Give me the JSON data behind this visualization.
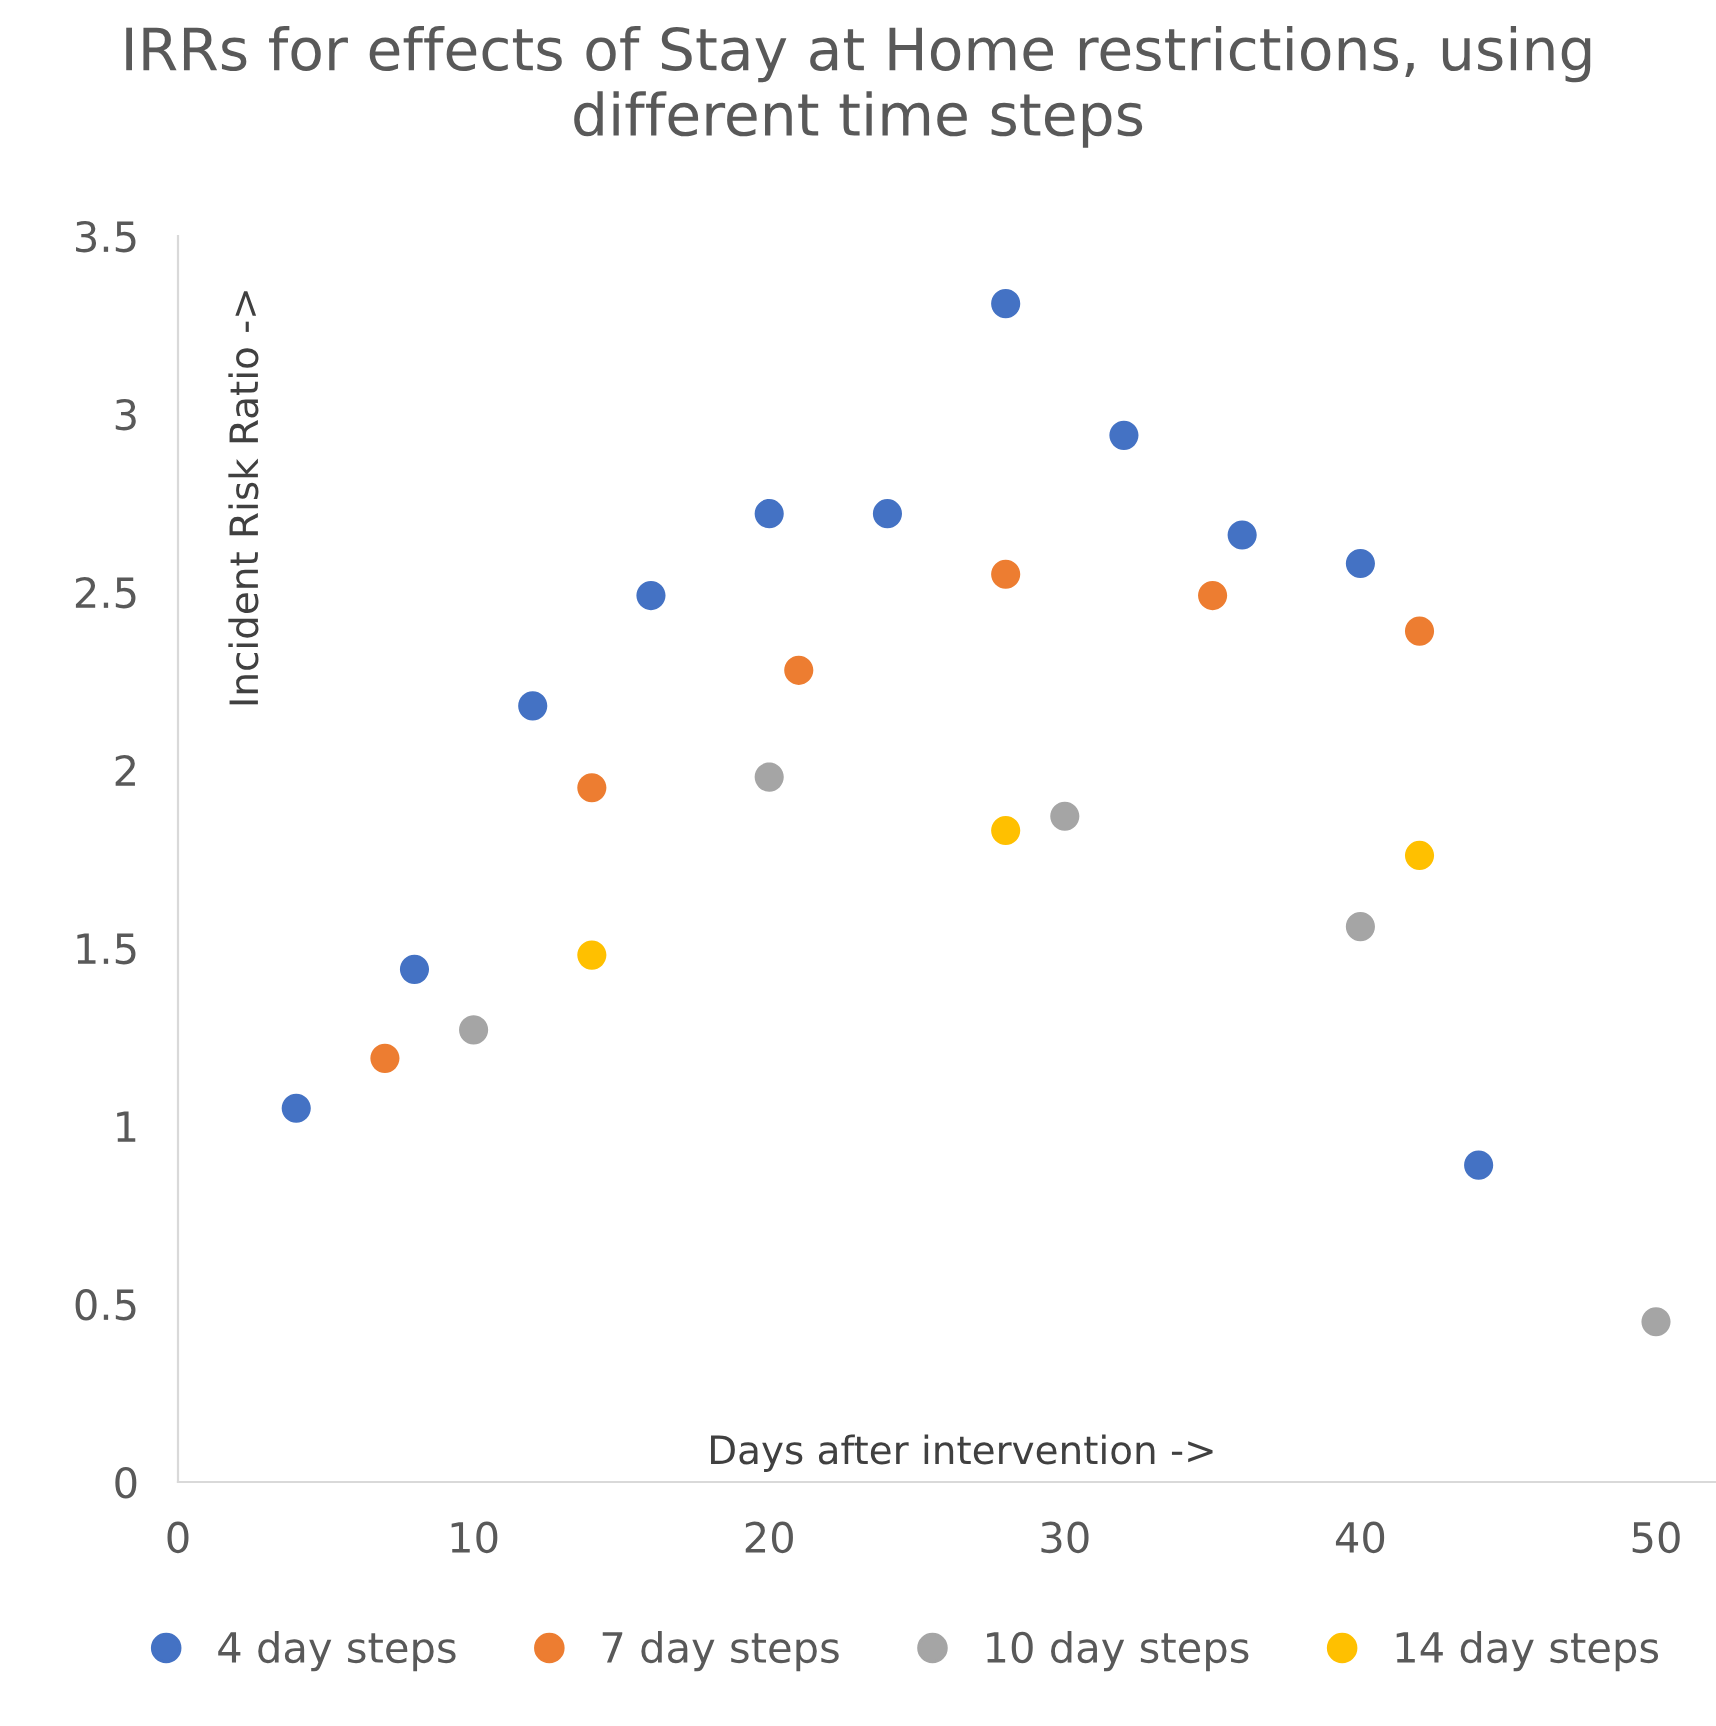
{
  "chart_data": {
    "type": "scatter",
    "title": "IRRs for effects of Stay at Home restrictions, using different time steps",
    "xlabel": "Days after intervention ->",
    "ylabel": "Incident Risk Ratio ->",
    "xlim": [
      0,
      52
    ],
    "xticks": [
      0,
      10,
      20,
      30,
      40,
      50
    ],
    "ylim": [
      0,
      3.5
    ],
    "yticks": [
      0,
      0.5,
      1,
      1.5,
      2,
      2.5,
      3,
      3.5
    ],
    "grid": false,
    "legend": "bottom",
    "marker": "circle",
    "series": [
      {
        "name": "4 day steps",
        "color": "#4472c4",
        "x": [
          4,
          8,
          12,
          16,
          20,
          24,
          28,
          32,
          36,
          40,
          44
        ],
        "values": [
          1.05,
          1.44,
          2.18,
          2.49,
          2.72,
          2.72,
          3.31,
          2.94,
          2.66,
          2.58,
          0.89
        ]
      },
      {
        "name": "7 day steps",
        "color": "#ed7d31",
        "x": [
          7,
          14,
          21,
          28,
          35,
          42
        ],
        "values": [
          1.19,
          1.95,
          2.28,
          2.55,
          2.49,
          2.39
        ]
      },
      {
        "name": "10 day steps",
        "color": "#a5a5a5",
        "x": [
          10,
          20,
          30,
          40,
          50
        ],
        "values": [
          1.27,
          1.98,
          1.87,
          1.56,
          0.45
        ]
      },
      {
        "name": "14 day steps",
        "color": "#ffc000",
        "x": [
          14,
          28,
          42
        ],
        "values": [
          1.48,
          1.83,
          1.76
        ]
      }
    ]
  }
}
